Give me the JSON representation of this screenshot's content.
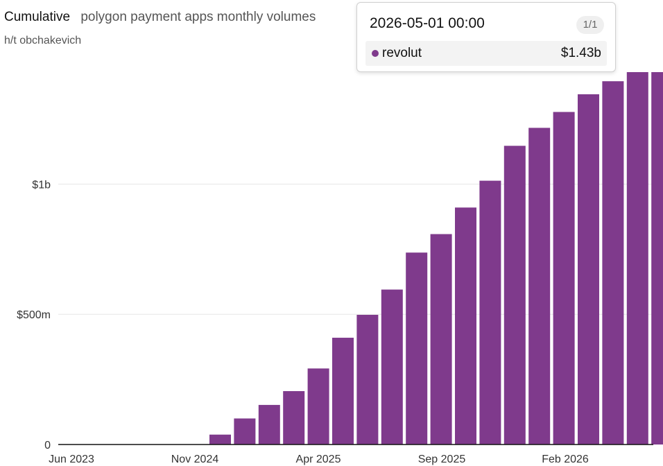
{
  "header": {
    "title": "Cumulative",
    "subtitle": "polygon payment apps monthly volumes",
    "credit": "h/t obchakevich"
  },
  "tooltip": {
    "date": "2026-05-01 00:00",
    "page": "1/1",
    "series_name": "revolut",
    "series_value": "$1.43b"
  },
  "colors": {
    "bar": "#7f3a8c",
    "grid": "#e6e6e6",
    "axis": "#111111",
    "tick_text": "#333333"
  },
  "chart_data": {
    "type": "bar",
    "title": "Cumulative",
    "subtitle": "polygon payment apps monthly volumes",
    "x_tick_labels": [
      "Jun 2023",
      "Nov 2024",
      "Apr 2025",
      "Sep 2025",
      "Feb 2026"
    ],
    "y_tick_labels": [
      "0",
      "$500m",
      "$1b"
    ],
    "y_ticks": [
      0,
      500000000,
      1000000000
    ],
    "ylim": [
      0,
      1430000000
    ],
    "grid": true,
    "categories": [
      "2024-11",
      "2024-12",
      "2025-01",
      "2025-02",
      "2025-03",
      "2025-04",
      "2025-05",
      "2025-06",
      "2025-07",
      "2025-08",
      "2025-09",
      "2025-10",
      "2025-11",
      "2025-12",
      "2026-01",
      "2026-02",
      "2026-03",
      "2026-04",
      "2026-05"
    ],
    "series": [
      {
        "name": "revolut",
        "color": "#7f3a8c",
        "values": [
          38000000,
          100000000,
          152000000,
          205000000,
          292000000,
          410000000,
          498000000,
          595000000,
          737000000,
          808000000,
          910000000,
          1013000000,
          1147000000,
          1216000000,
          1277000000,
          1345000000,
          1395000000,
          1430000000,
          1430000000
        ]
      }
    ]
  }
}
